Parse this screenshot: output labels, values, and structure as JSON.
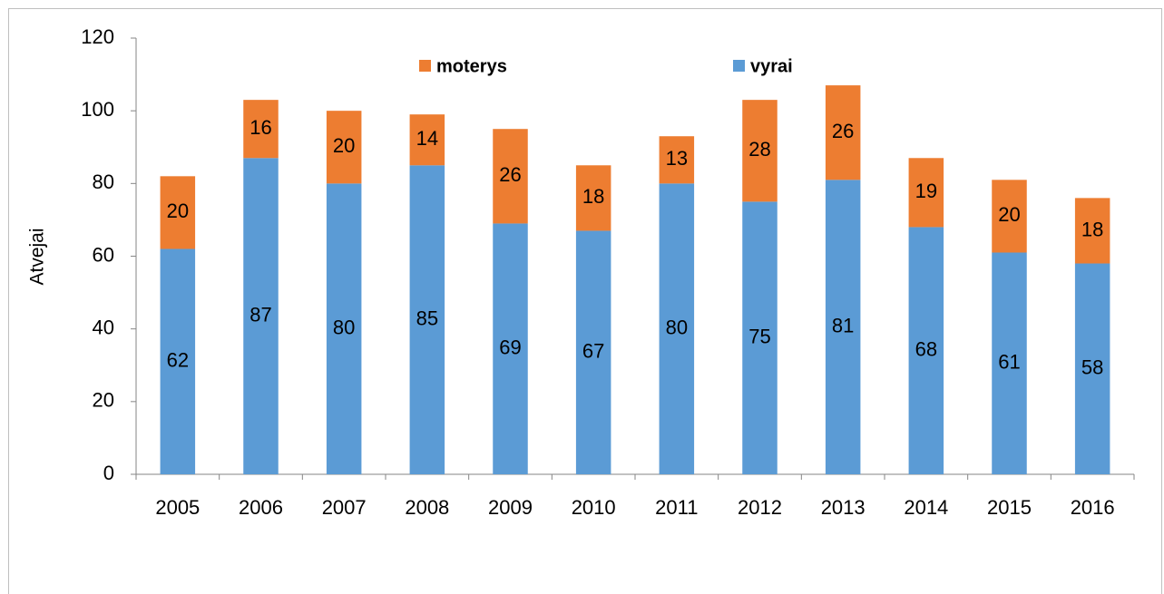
{
  "chart_data": {
    "type": "stacked_bar",
    "y_label": "Atvejai",
    "categories": [
      "2005",
      "2006",
      "2007",
      "2008",
      "2009",
      "2010",
      "2011",
      "2012",
      "2013",
      "2014",
      "2015",
      "2016"
    ],
    "series": [
      {
        "name": "moterys",
        "color": "#ed7d31",
        "values": [
          20,
          16,
          20,
          14,
          26,
          18,
          13,
          28,
          26,
          19,
          20,
          18
        ]
      },
      {
        "name": "vyrai",
        "color": "#5b9bd5",
        "values": [
          62,
          87,
          80,
          85,
          69,
          67,
          80,
          75,
          81,
          68,
          61,
          58
        ]
      }
    ],
    "ylim": [
      0,
      120
    ],
    "yticks": [
      0,
      20,
      40,
      60,
      80,
      100,
      120
    ],
    "grid": false,
    "legend": "top"
  }
}
